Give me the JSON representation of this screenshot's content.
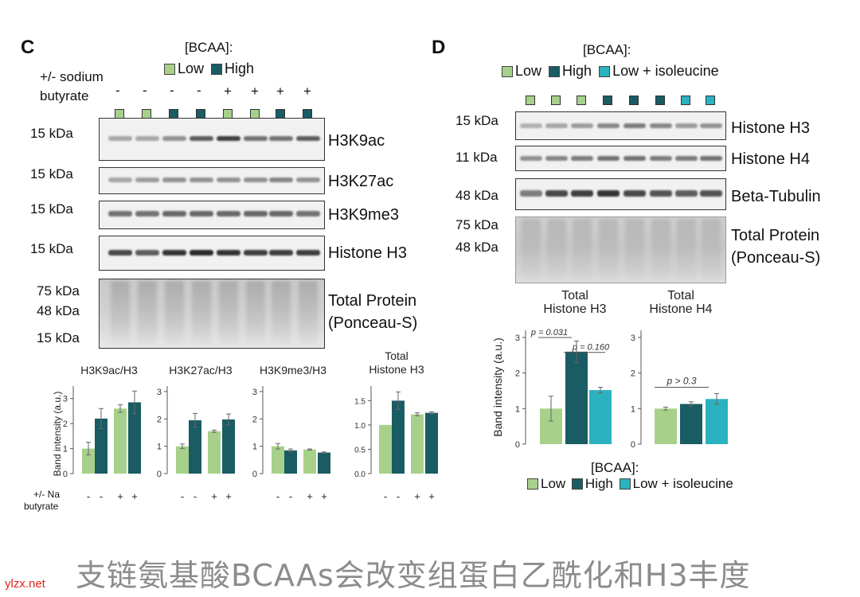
{
  "colors": {
    "low": "#a7d18a",
    "high": "#1a5c64",
    "iso": "#2bb2c0"
  },
  "panel_c": {
    "letter": "C",
    "bcaa_title": "[BCAA]:",
    "legend_low": "Low",
    "legend_high": "High",
    "butyrate_label_1": "+/- sodium",
    "butyrate_label_2": "butyrate",
    "lane_signs": [
      "-",
      "-",
      "-",
      "-",
      "+",
      "+",
      "+",
      "+"
    ],
    "lane_groups": [
      "low",
      "low",
      "high",
      "high",
      "low",
      "low",
      "high",
      "high"
    ],
    "blots": [
      {
        "kda": "15 kDa",
        "label": "H3K9ac"
      },
      {
        "kda": "15 kDa",
        "label": "H3K27ac"
      },
      {
        "kda": "15 kDa",
        "label": "H3K9me3"
      },
      {
        "kda": "15 kDa",
        "label": "Histone H3"
      }
    ],
    "ponceau_kda": [
      "75 kDa",
      "48 kDa",
      "15 kDa"
    ],
    "ponceau_label_1": "Total Protein",
    "ponceau_label_2": "(Ponceau-S)",
    "x_signs": [
      "-",
      "-",
      "+",
      "+"
    ],
    "x_label_1": "+/- Na",
    "x_label_2": "butyrate"
  },
  "panel_d": {
    "letter": "D",
    "bcaa_title": "[BCAA]:",
    "legend_low": "Low",
    "legend_high": "High",
    "legend_iso": "Low + isoleucine",
    "lane_groups": [
      "low",
      "low",
      "low",
      "high",
      "high",
      "high",
      "iso",
      "iso"
    ],
    "blots": [
      {
        "kda": "15 kDa",
        "label": "Histone H3"
      },
      {
        "kda": "11 kDa",
        "label": "Histone H4"
      },
      {
        "kda": "48 kDa",
        "label": "Beta-Tubulin"
      }
    ],
    "ponceau_kda": [
      "75 kDa",
      "48 kDa"
    ],
    "ponceau_label_1": "Total Protein",
    "ponceau_label_2": "(Ponceau-S)",
    "bottom_legend_title": "[BCAA]:",
    "bottom_legend_low": "Low",
    "bottom_legend_high": "High",
    "bottom_legend_iso": "Low + isoleucine"
  },
  "chart_data": [
    {
      "type": "bar",
      "title": "H3K9ac/H3",
      "ylabel": "Band intensity (a.u.)",
      "ylim": [
        0,
        3.5
      ],
      "yticks": [
        "0",
        "1",
        "2",
        "3"
      ],
      "categories": [
        "Low -",
        "High -",
        "Low +",
        "High +"
      ],
      "values": [
        1.0,
        2.2,
        2.6,
        2.85
      ],
      "errors": [
        0.25,
        0.4,
        0.15,
        0.45
      ]
    },
    {
      "type": "bar",
      "title": "H3K27ac/H3",
      "ylim": [
        0,
        3.2
      ],
      "yticks": [
        "0",
        "1",
        "2",
        "3"
      ],
      "categories": [
        "Low -",
        "High -",
        "Low +",
        "High +"
      ],
      "values": [
        1.0,
        1.95,
        1.55,
        1.98
      ],
      "errors": [
        0.08,
        0.25,
        0.04,
        0.2
      ]
    },
    {
      "type": "bar",
      "title": "H3K9me3/H3",
      "ylim": [
        0,
        3.2
      ],
      "yticks": [
        "0",
        "1",
        "2",
        "3"
      ],
      "categories": [
        "Low -",
        "High -",
        "Low +",
        "High +"
      ],
      "values": [
        1.0,
        0.85,
        0.88,
        0.77
      ],
      "errors": [
        0.1,
        0.05,
        0.02,
        0.02
      ]
    },
    {
      "type": "bar",
      "title": "Total Histone H3",
      "ylim": [
        0,
        1.8
      ],
      "yticks": [
        "0.0",
        "0.5",
        "1.0",
        "1.5"
      ],
      "categories": [
        "Low -",
        "High -",
        "Low +",
        "High +"
      ],
      "values": [
        1.0,
        1.5,
        1.22,
        1.25
      ],
      "errors": [
        0.0,
        0.18,
        0.03,
        0.02
      ]
    },
    {
      "type": "bar",
      "title": "Total Histone H3",
      "ylabel": "Band intensity (a.u.)",
      "ylim": [
        0,
        3.2
      ],
      "yticks": [
        "0",
        "1",
        "2",
        "3"
      ],
      "categories": [
        "Low",
        "High",
        "Low + isoleucine"
      ],
      "values": [
        1.0,
        2.6,
        1.52
      ],
      "errors": [
        0.35,
        0.3,
        0.08
      ],
      "annotations": [
        "p = 0.031",
        "p = 0.160"
      ]
    },
    {
      "type": "bar",
      "title": "Total Histone H4",
      "ylim": [
        0,
        3.2
      ],
      "yticks": [
        "0",
        "1",
        "2",
        "3"
      ],
      "categories": [
        "Low",
        "High",
        "Low + isoleucine"
      ],
      "values": [
        1.0,
        1.13,
        1.27
      ],
      "errors": [
        0.04,
        0.06,
        0.15
      ],
      "annotations": [
        "p > 0.3"
      ]
    }
  ],
  "footer": {
    "site": "ylzx.net",
    "caption": "支链氨基酸BCAAs会改变组蛋白乙酰化和H3丰度"
  }
}
